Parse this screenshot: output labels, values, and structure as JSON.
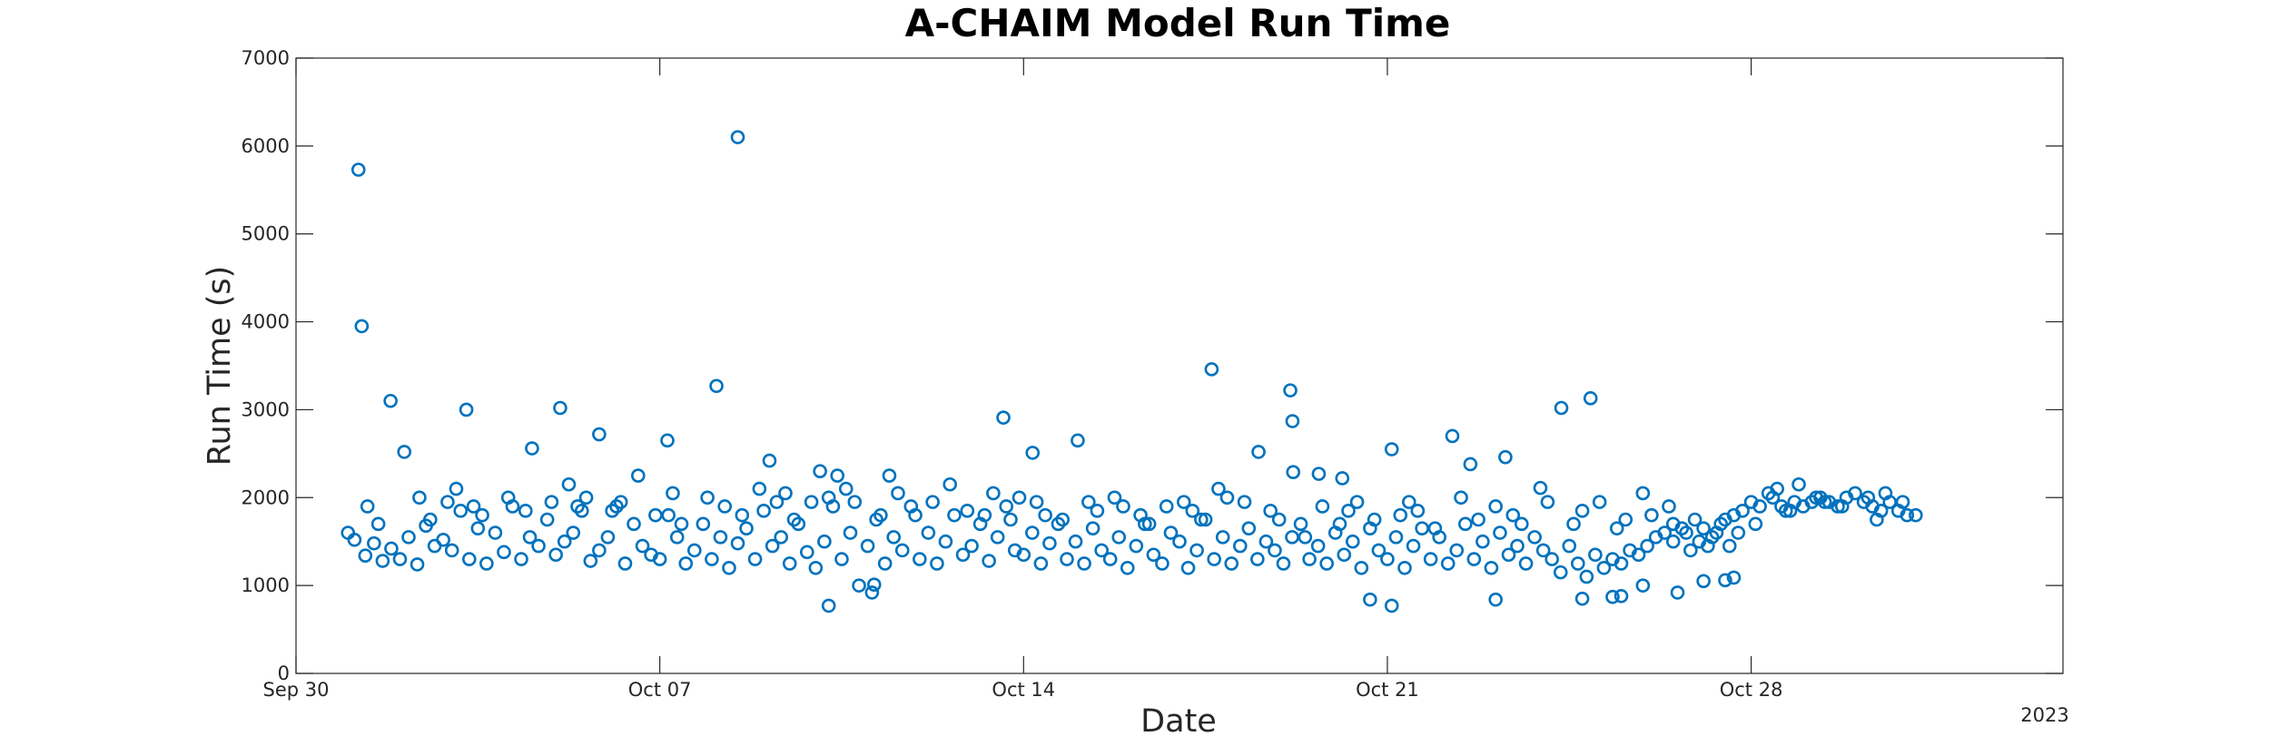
{
  "chart_data": {
    "type": "scatter",
    "title": "A-CHAIM Model Run Time",
    "xlabel": "Date",
    "ylabel": "Run Time (s)",
    "x_secondary_label": "2023",
    "xlim": [
      "2023-09-30",
      "2023-11-03"
    ],
    "ylim": [
      0,
      7000
    ],
    "yticks": [
      0,
      1000,
      2000,
      3000,
      4000,
      5000,
      6000,
      7000
    ],
    "xticks": [
      {
        "date": "2023-09-30",
        "label": "Sep 30"
      },
      {
        "date": "2023-10-07",
        "label": "Oct 07"
      },
      {
        "date": "2023-10-14",
        "label": "Oct 14"
      },
      {
        "date": "2023-10-21",
        "label": "Oct 21"
      },
      {
        "date": "2023-10-28",
        "label": "Oct 28"
      }
    ],
    "grid": false,
    "marker": "open-circle",
    "color": "#0072BD",
    "series": [
      {
        "x": [
          "2023-10-01 04:50",
          "2023-10-08 12:00",
          "2023-10-01 06:20",
          "2023-10-01 19:40",
          "2023-10-03 06:40",
          "2023-10-04 13:00",
          "2023-10-08 02:10",
          "2023-10-05 02:00",
          "2023-10-17 14:50",
          "2023-10-19 03:10",
          "2023-10-24 21:50",
          "2023-10-24 08:20",
          "2023-10-05 20:00",
          "2023-10-07 03:30",
          "2023-10-13 14:40",
          "2023-10-15 01:00",
          "2023-10-19 04:10",
          "2023-10-21 02:00",
          "2023-10-22 06:00",
          "2023-10-18 12:30",
          "2023-10-14 04:10",
          "2023-10-23 06:30",
          "2023-10-09 02:40",
          "2023-10-02 02:00",
          "2023-10-10 02:00",
          "2023-10-10 10:00",
          "2023-10-22 14:20",
          "2023-10-19 04:30",
          "2023-10-19 16:20",
          "2023-10-20 03:10",
          "2023-10-23 22:40",
          "2023-10-26 12:00"
        ],
        "y": [
          5730,
          6100,
          3950,
          3100,
          3000,
          2560,
          3270,
          3020,
          3460,
          3220,
          3130,
          3020,
          2720,
          2650,
          2910,
          2650,
          2870,
          2550,
          2700,
          2520,
          2510,
          2460,
          2420,
          2520,
          2300,
          2250,
          2380,
          2290,
          2270,
          2220,
          2110,
          1700
        ]
      },
      {
        "x": [
          "2023-10-01 00:00",
          "2023-10-01 03:00",
          "2023-10-01 08:00",
          "2023-10-01 12:00",
          "2023-10-01 16:00",
          "2023-10-01 20:00",
          "2023-10-02 00:00",
          "2023-10-02 04:00",
          "2023-10-02 08:00",
          "2023-10-02 12:00",
          "2023-10-02 16:00",
          "2023-10-02 20:00",
          "2023-10-03 00:00",
          "2023-10-03 04:00",
          "2023-10-03 08:00",
          "2023-10-03 12:00",
          "2023-10-03 16:00",
          "2023-10-03 20:00",
          "2023-10-04 00:00",
          "2023-10-04 04:00",
          "2023-10-04 08:00",
          "2023-10-04 12:00",
          "2023-10-04 16:00",
          "2023-10-04 20:00",
          "2023-10-05 00:00",
          "2023-10-05 04:00",
          "2023-10-05 08:00",
          "2023-10-05 12:00",
          "2023-10-05 16:00",
          "2023-10-05 20:00",
          "2023-10-06 00:00",
          "2023-10-06 04:00",
          "2023-10-06 08:00",
          "2023-10-06 12:00",
          "2023-10-06 16:00",
          "2023-10-06 20:00",
          "2023-10-07 00:00",
          "2023-10-07 04:00",
          "2023-10-07 08:00",
          "2023-10-07 12:00",
          "2023-10-07 16:00",
          "2023-10-07 20:00",
          "2023-10-08 00:00",
          "2023-10-08 04:00",
          "2023-10-08 08:00",
          "2023-10-08 12:00",
          "2023-10-08 16:00",
          "2023-10-08 20:00",
          "2023-10-09 00:00",
          "2023-10-09 04:00",
          "2023-10-09 08:00",
          "2023-10-09 12:00",
          "2023-10-09 16:00",
          "2023-10-09 20:00",
          "2023-10-10 00:00",
          "2023-10-10 04:00",
          "2023-10-10 08:00",
          "2023-10-10 12:00",
          "2023-10-10 16:00",
          "2023-10-10 20:00",
          "2023-10-11 00:00",
          "2023-10-11 04:00",
          "2023-10-11 08:00",
          "2023-10-11 12:00",
          "2023-10-11 16:00",
          "2023-10-11 20:00",
          "2023-10-12 00:00",
          "2023-10-12 04:00",
          "2023-10-12 08:00",
          "2023-10-12 12:00",
          "2023-10-12 16:00",
          "2023-10-12 20:00",
          "2023-10-13 00:00",
          "2023-10-13 04:00",
          "2023-10-13 08:00",
          "2023-10-13 12:00",
          "2023-10-13 16:00",
          "2023-10-13 20:00",
          "2023-10-14 00:00",
          "2023-10-14 04:00",
          "2023-10-14 08:00",
          "2023-10-14 12:00",
          "2023-10-14 16:00",
          "2023-10-14 20:00",
          "2023-10-15 00:00",
          "2023-10-15 04:00",
          "2023-10-15 08:00",
          "2023-10-15 12:00",
          "2023-10-15 16:00",
          "2023-10-15 20:00",
          "2023-10-16 00:00",
          "2023-10-16 04:00",
          "2023-10-16 08:00",
          "2023-10-16 12:00",
          "2023-10-16 16:00",
          "2023-10-16 20:00",
          "2023-10-17 00:00",
          "2023-10-17 04:00",
          "2023-10-17 08:00",
          "2023-10-17 12:00",
          "2023-10-17 16:00",
          "2023-10-17 20:00",
          "2023-10-18 00:00",
          "2023-10-18 04:00",
          "2023-10-18 08:00",
          "2023-10-18 12:00",
          "2023-10-18 16:00",
          "2023-10-18 20:00",
          "2023-10-19 00:00",
          "2023-10-19 04:00",
          "2023-10-19 08:00",
          "2023-10-19 12:00",
          "2023-10-19 16:00",
          "2023-10-19 20:00",
          "2023-10-20 00:00",
          "2023-10-20 04:00",
          "2023-10-20 08:00",
          "2023-10-20 12:00",
          "2023-10-20 16:00",
          "2023-10-20 20:00",
          "2023-10-21 00:00",
          "2023-10-21 04:00",
          "2023-10-21 08:00",
          "2023-10-21 12:00",
          "2023-10-21 16:00",
          "2023-10-21 20:00",
          "2023-10-22 00:00",
          "2023-10-22 04:00",
          "2023-10-22 08:00",
          "2023-10-22 12:00",
          "2023-10-22 16:00",
          "2023-10-22 20:00",
          "2023-10-23 00:00",
          "2023-10-23 04:00",
          "2023-10-23 08:00",
          "2023-10-23 12:00",
          "2023-10-23 16:00",
          "2023-10-23 20:00",
          "2023-10-24 00:00",
          "2023-10-24 04:00",
          "2023-10-24 08:00",
          "2023-10-24 12:00",
          "2023-10-24 16:00",
          "2023-10-24 20:00",
          "2023-10-25 00:00",
          "2023-10-25 04:00",
          "2023-10-25 08:00",
          "2023-10-25 12:00",
          "2023-10-25 16:00",
          "2023-10-25 20:00",
          "2023-10-26 00:00",
          "2023-10-26 04:00",
          "2023-10-26 08:00",
          "2023-10-26 12:00",
          "2023-10-26 16:00",
          "2023-10-26 20:00",
          "2023-10-27 00:00",
          "2023-10-27 04:00",
          "2023-10-27 08:00",
          "2023-10-27 12:00",
          "2023-10-27 16:00",
          "2023-10-27 20:00",
          "2023-10-28 00:00",
          "2023-10-28 04:00",
          "2023-10-28 08:00",
          "2023-10-28 12:00",
          "2023-10-28 16:00",
          "2023-10-28 20:00",
          "2023-10-29 00:00",
          "2023-10-29 04:00",
          "2023-10-29 08:00",
          "2023-10-29 12:00",
          "2023-10-29 16:00",
          "2023-10-29 20:00",
          "2023-10-30 00:00",
          "2023-10-30 04:00",
          "2023-10-30 08:00",
          "2023-10-30 12:00",
          "2023-10-30 16:00",
          "2023-10-30 20:00",
          "2023-10-31 00:00",
          "2023-10-31 04:00"
        ],
        "y": [
          1600,
          1520,
          1340,
          1480,
          1280,
          1420,
          1300,
          1550,
          1240,
          1680,
          1450,
          1520,
          1400,
          1850,
          1300,
          1650,
          1250,
          1600,
          1380,
          1900,
          1300,
          1550,
          1450,
          1750,
          1350,
          1500,
          1600,
          1850,
          1280,
          1400,
          1550,
          1900,
          1250,
          1700,
          1450,
          1350,
          1300,
          1800,
          1550,
          1250,
          1400,
          1700,
          1300,
          1550,
          1200,
          1480,
          1650,
          1300,
          1850,
          1450,
          1550,
          1250,
          1700,
          1380,
          1200,
          1500,
          1900,
          1300,
          1600,
          1000,
          1450,
          1750,
          1250,
          1550,
          1400,
          1900,
          1300,
          1600,
          1250,
          1500,
          1800,
          1350,
          1450,
          1700,
          1280,
          1550,
          1900,
          1400,
          1350,
          1600,
          1250,
          1480,
          1700,
          1300,
          1500,
          1250,
          1650,
          1400,
          1300,
          1550,
          1200,
          1450,
          1700,
          1350,
          1250,
          1600,
          1500,
          1200,
          1400,
          1750,
          1300,
          1550,
          1250,
          1450,
          1650,
          1300,
          1500,
          1400,
          1250,
          1550,
          1700,
          1300,
          1450,
          1250,
          1600,
          1350,
          1500,
          1200,
          1650,
          1400,
          1300,
          1550,
          1200,
          1450,
          1650,
          1300,
          1550,
          1250,
          1400,
          1700,
          1300,
          1500,
          1200,
          1600,
          1350,
          1450,
          1250,
          1550,
          1400,
          1300,
          1150,
          1450,
          1250,
          1100,
          1350,
          1200,
          1300,
          1250,
          1400,
          1350,
          1450,
          1550,
          1600,
          1500,
          1650,
          1400,
          1500,
          1450,
          1600,
          1750,
          1800,
          1850,
          1950,
          1900,
          2050,
          2100,
          1850,
          1950,
          1900,
          1950,
          2000,
          1950,
          1900,
          2000,
          2050,
          1950,
          1900,
          1850,
          1950,
          1850,
          1800,
          1800
        ]
      },
      {
        "x": [
          "2023-10-01 09:00",
          "2023-10-01 14:00",
          "2023-10-02 09:00",
          "2023-10-02 14:00",
          "2023-10-02 22:00",
          "2023-10-03 02:00",
          "2023-10-03 10:00",
          "2023-10-03 14:00",
          "2023-10-04 02:00",
          "2023-10-04 10:00",
          "2023-10-04 22:00",
          "2023-10-05 06:00",
          "2023-10-05 10:00",
          "2023-10-05 14:00",
          "2023-10-06 02:00",
          "2023-10-06 06:00",
          "2023-10-06 14:00",
          "2023-10-06 22:00",
          "2023-10-07 06:00",
          "2023-10-07 10:00",
          "2023-10-07 22:00",
          "2023-10-08 06:00",
          "2023-10-08 14:00",
          "2023-10-08 22:00",
          "2023-10-09 06:00",
          "2023-10-09 10:00",
          "2023-10-09 14:00",
          "2023-10-09 22:00",
          "2023-10-10 06:00",
          "2023-10-10 14:00",
          "2023-10-10 18:00",
          "2023-10-11 06:00",
          "2023-10-11 10:00",
          "2023-10-11 14:00",
          "2023-10-11 22:00",
          "2023-10-12 06:00",
          "2023-10-12 14:00",
          "2023-10-12 22:00",
          "2023-10-13 06:00",
          "2023-10-13 10:00",
          "2023-10-13 18:00",
          "2023-10-13 22:00",
          "2023-10-14 06:00",
          "2023-10-14 10:00",
          "2023-10-14 18:00",
          "2023-10-15 06:00",
          "2023-10-15 10:00",
          "2023-10-15 18:00",
          "2023-10-15 22:00",
          "2023-10-16 06:00",
          "2023-10-16 10:00",
          "2023-10-16 18:00",
          "2023-10-17 02:00",
          "2023-10-17 06:00",
          "2023-10-17 10:00",
          "2023-10-17 18:00",
          "2023-10-17 22:00",
          "2023-10-18 06:00",
          "2023-10-18 18:00",
          "2023-10-18 22:00",
          "2023-10-19 10:00",
          "2023-10-19 18:00",
          "2023-10-20 02:00",
          "2023-10-20 06:00",
          "2023-10-20 10:00",
          "2023-10-20 18:00",
          "2023-10-21 06:00",
          "2023-10-21 10:00",
          "2023-10-21 14:00",
          "2023-10-21 22:00",
          "2023-10-22 10:00",
          "2023-10-22 18:00",
          "2023-10-23 02:00",
          "2023-10-23 10:00",
          "2023-10-23 14:00",
          "2023-10-24 02:00",
          "2023-10-24 14:00",
          "2023-10-24 18:00",
          "2023-10-25 02:00",
          "2023-10-25 10:00",
          "2023-10-25 14:00",
          "2023-10-25 22:00",
          "2023-10-26 02:00",
          "2023-10-26 10:00",
          "2023-10-26 18:00",
          "2023-10-26 22:00",
          "2023-10-27 02:00",
          "2023-10-27 06:00",
          "2023-10-27 10:00",
          "2023-10-27 14:00",
          "2023-10-27 18:00",
          "2023-10-28 02:00",
          "2023-10-28 10:00",
          "2023-10-28 14:00",
          "2023-10-28 18:00",
          "2023-10-28 22:00",
          "2023-10-29 06:00",
          "2023-10-29 10:00",
          "2023-10-29 18:00",
          "2023-10-30 06:00",
          "2023-10-30 10:00",
          "2023-10-30 14:00",
          "2023-10-30 22:00"
        ],
        "y": [
          1900,
          1700,
          2000,
          1750,
          1950,
          2100,
          1900,
          1800,
          2000,
          1850,
          1950,
          2150,
          1900,
          2000,
          1850,
          1950,
          2250,
          1800,
          2050,
          1700,
          2000,
          1900,
          1800,
          2100,
          1950,
          2050,
          1750,
          1950,
          2000,
          2100,
          1950,
          1800,
          2250,
          2050,
          1800,
          1950,
          2150,
          1850,
          1800,
          2050,
          1750,
          2000,
          1950,
          1800,
          1750,
          1950,
          1850,
          2000,
          1900,
          1800,
          1700,
          1900,
          1950,
          1850,
          1750,
          2100,
          2000,
          1950,
          1850,
          1750,
          1550,
          1900,
          1700,
          1850,
          1950,
          1750,
          1800,
          1950,
          1850,
          1650,
          2000,
          1750,
          1900,
          1800,
          1700,
          1950,
          1700,
          1850,
          1950,
          1650,
          1750,
          2050,
          1800,
          1900,
          1600,
          1750,
          1650,
          1550,
          1700,
          1450,
          1600,
          1700,
          2000,
          1900,
          1850,
          2150,
          2000,
          1950,
          1900,
          2000,
          1750,
          2050,
          1950
        ]
      },
      {
        "x": [
          "2023-10-10 06:00",
          "2023-10-11 02:00",
          "2023-10-11 03:00",
          "2023-10-20 16:00",
          "2023-10-21 02:00",
          "2023-10-23 02:00",
          "2023-10-24 18:00",
          "2023-10-25 08:00",
          "2023-10-25 12:00",
          "2023-10-25 22:00",
          "2023-10-26 14:00",
          "2023-10-27 02:00",
          "2023-10-27 12:00",
          "2023-10-27 16:00"
        ],
        "y": [
          770,
          920,
          1010,
          840,
          770,
          840,
          850,
          870,
          880,
          1000,
          920,
          1050,
          1060,
          1090
        ]
      }
    ]
  }
}
